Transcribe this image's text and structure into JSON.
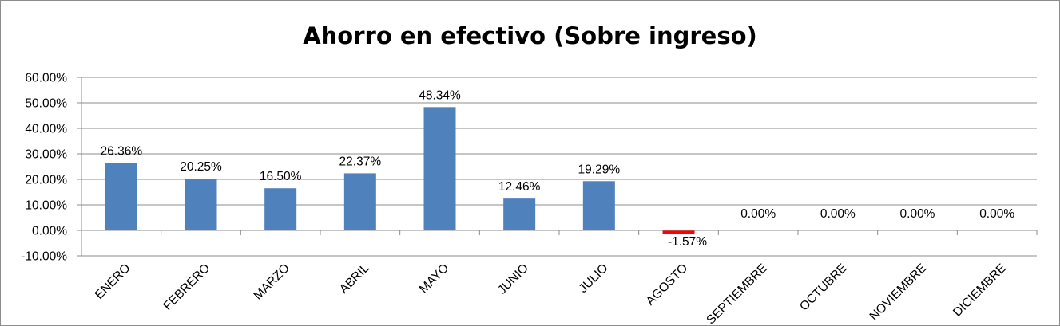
{
  "chart_data": {
    "type": "bar",
    "title": "Ahorro en efectivo (Sobre ingreso)",
    "xlabel": "",
    "ylabel": "",
    "categories": [
      "ENERO",
      "FEBRERO",
      "MARZO",
      "ABRIL",
      "MAYO",
      "JUNIO",
      "JULIO",
      "AGOSTO",
      "SEPTIEMBRE",
      "OCTUBRE",
      "NOVIEMBRE",
      "DICIEMBRE"
    ],
    "values": [
      26.36,
      20.25,
      16.5,
      22.37,
      48.34,
      12.46,
      19.29,
      -1.57,
      0.0,
      0.0,
      0.0,
      0.0
    ],
    "data_labels": [
      "26.36%",
      "20.25%",
      "16.50%",
      "22.37%",
      "48.34%",
      "12.46%",
      "19.29%",
      "-1.57%",
      "0.00%",
      "0.00%",
      "0.00%",
      "0.00%"
    ],
    "ylim": [
      -10,
      60
    ],
    "yticks": [
      60,
      50,
      40,
      30,
      20,
      10,
      0,
      -10
    ],
    "ytick_labels": [
      "60.00%",
      "50.00%",
      "40.00%",
      "30.00%",
      "20.00%",
      "10.00%",
      "0.00%",
      "-10.00%"
    ],
    "grid": true,
    "legend": "none",
    "colors": {
      "positive": "#4f81bd",
      "negative": "#ff0000",
      "grid": "#8c8c8c"
    }
  }
}
